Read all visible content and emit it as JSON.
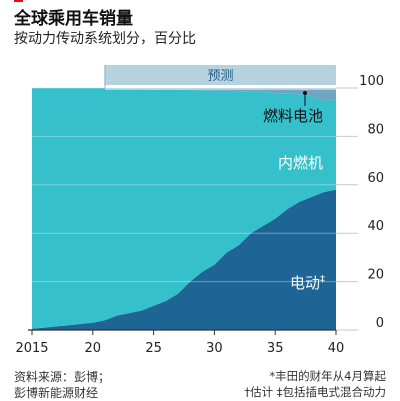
{
  "title": "全球乘用车销量",
  "subtitle": "按动力传动系统划分，百分比",
  "source": {
    "line1": "资料来源：彭博；",
    "line2": "彭博新能源财经"
  },
  "footnotes": {
    "note1": "*丰田的财年从4月算起",
    "note2": "†估计 ‡包括插电式混合动力"
  },
  "colors": {
    "ev": "#1e6595",
    "ice": "#36c0cb",
    "fuel_cell": "#6fa5c0",
    "forecast_band": "#b6d2e1",
    "forecast_shade": "#e0ecf3"
  },
  "chart_data": {
    "type": "area",
    "stacked": true,
    "x": [
      2015,
      2016,
      2017,
      2018,
      2019,
      2020,
      2021,
      2022,
      2023,
      2024,
      2025,
      2026,
      2027,
      2028,
      2029,
      2030,
      2031,
      2032,
      2033,
      2034,
      2035,
      2036,
      2037,
      2038,
      2039,
      2040
    ],
    "series": [
      {
        "name": "电动‡",
        "values": [
          0.5,
          1,
          1.5,
          2,
          2.5,
          3,
          4,
          6,
          7,
          8,
          10,
          12,
          15,
          20,
          24,
          27,
          32,
          35,
          40,
          43,
          46,
          50,
          53,
          55,
          57,
          58
        ]
      },
      {
        "name": "内燃机",
        "values": [
          99.5,
          99,
          98.5,
          98,
          97.5,
          97,
          96,
          94,
          92.7,
          91.6,
          89.5,
          87.4,
          84.3,
          79.2,
          75.1,
          72,
          66.8,
          63.7,
          58.6,
          55.5,
          51.9,
          47.8,
          44.5,
          41.6,
          38,
          37
        ]
      },
      {
        "name": "燃料电池",
        "values": [
          0,
          0,
          0,
          0,
          0,
          0,
          0,
          0,
          0.3,
          0.4,
          0.5,
          0.6,
          0.7,
          0.8,
          0.9,
          1,
          1.2,
          1.3,
          1.4,
          1.5,
          2.1,
          2.2,
          2.5,
          3.4,
          5,
          5
        ]
      }
    ],
    "series_labels": [
      "电动",
      "内燃机",
      "燃料电池"
    ],
    "ev_label_mark": "‡",
    "forecast": {
      "label": "预测",
      "from": 2021,
      "to": 2040
    },
    "x_ticks": [
      2015,
      20,
      25,
      30,
      35,
      40
    ],
    "y_ticks": [
      0,
      20,
      40,
      60,
      80,
      100
    ],
    "ylim": [
      0,
      100
    ],
    "xlim": [
      2015,
      2040
    ],
    "y_axis_side": "right",
    "grid": "horizontal"
  }
}
